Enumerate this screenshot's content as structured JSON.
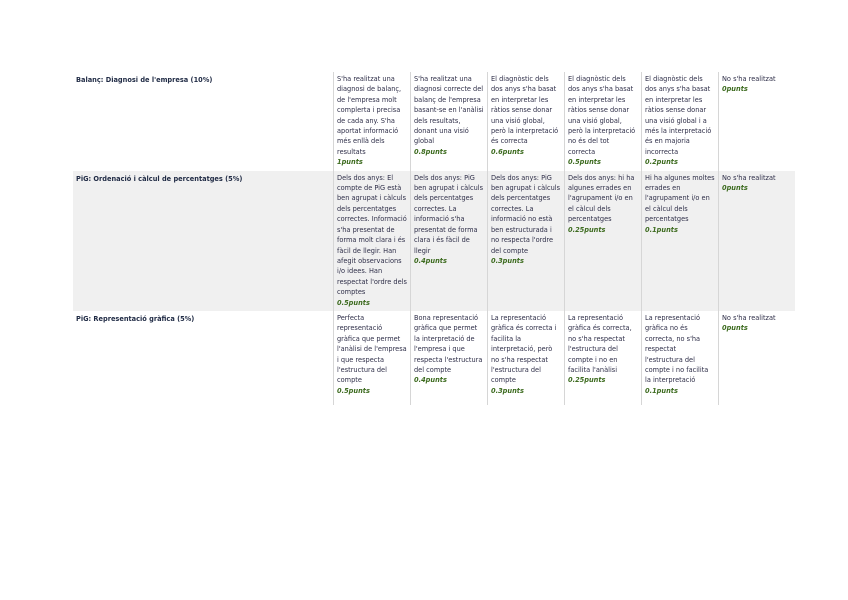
{
  "rubric": {
    "rows": [
      {
        "criterion": "Balanç: Diagnosi de l'empresa (10%)",
        "levels": [
          {
            "text": "S'ha realitzat una diagnosi de balanç, de l'empresa molt complerta i precisa de cada any. S'ha aportat informació més enllà dels resultats",
            "points": "1punts"
          },
          {
            "text": "S'ha realitzat una diagnosi correcte del balanç de l'empresa basant-se en l'anàlisi dels resultats, donant una visió global",
            "points": "0.8punts"
          },
          {
            "text": "El diagnòstic dels dos anys s'ha basat en interpretar les ràtios sense donar una visió global, però la interpretació és correcta",
            "points": "0.6punts"
          },
          {
            "text": "El diagnòstic dels dos anys s'ha basat en interpretar les ràtios sense donar una visió global, però la interpretació no és del tot correcta",
            "points": "0.5punts"
          },
          {
            "text": "El diagnòstic dels dos anys s'ha basat en interpretar les ràtios sense donar una visió global i a més la interpretació és en majoria incorrecta",
            "points": "0.2punts"
          },
          {
            "text": "No s'ha realitzat",
            "points": "0punts"
          }
        ]
      },
      {
        "criterion": "PiG: Ordenació i càlcul de percentatges (5%)",
        "levels": [
          {
            "text": "Dels dos anys: El compte de PiG està ben agrupat i càlculs dels percentatges correctes. Informació s'ha presentat de forma molt clara i és fàcil de llegir. Han afegit observacions i/o idees. Han respectat l'ordre dels comptes",
            "points": "0.5punts"
          },
          {
            "text": "Dels dos anys: PiG ben agrupat i càlculs dels percentatges correctes. La informació s'ha presentat de forma clara i és fàcil de llegir",
            "points": "0.4punts"
          },
          {
            "text": "Dels dos anys: PiG ben agrupat i càlculs dels percentatges correctes. La informació no està ben estructurada i no respecta l'ordre del compte",
            "points": "0.3punts"
          },
          {
            "text": "Dels dos anys: hi ha algunes errades en l'agrupament i/o en el càlcul dels percentatges",
            "points": "0.25punts"
          },
          {
            "text": "Hi ha algunes moltes errades en l'agrupament i/o en el càlcul dels percentatges",
            "points": "0.1punts"
          },
          {
            "text": "No s'ha realitzat",
            "points": "0punts"
          }
        ]
      },
      {
        "criterion": "PiG: Representació gràfica (5%)",
        "levels": [
          {
            "text": "Perfecta representació gràfica que permet l'anàlisi de l'empresa i que respecta l'estructura del compte",
            "points": "0.5punts"
          },
          {
            "text": "Bona representació gràfica que permet la interpretació de l'empresa i que respecta l'estructura del compte",
            "points": "0.4punts"
          },
          {
            "text": "La representació gràfica és correcta i facilita la interpretació, però no s'ha respectat l'estructura del compte",
            "points": "0.3punts"
          },
          {
            "text": "La representació gràfica és correcta, no s'ha respectat l'estructura del compte i no en facilita l'anàlisi",
            "points": "0.25punts"
          },
          {
            "text": "La representació gràfica no és correcta, no s'ha respectat l'estructura del compte i no facilita la interpretació",
            "points": "0.1punts"
          },
          {
            "text": "No s'ha realitzat",
            "points": "0punts"
          }
        ]
      }
    ]
  }
}
